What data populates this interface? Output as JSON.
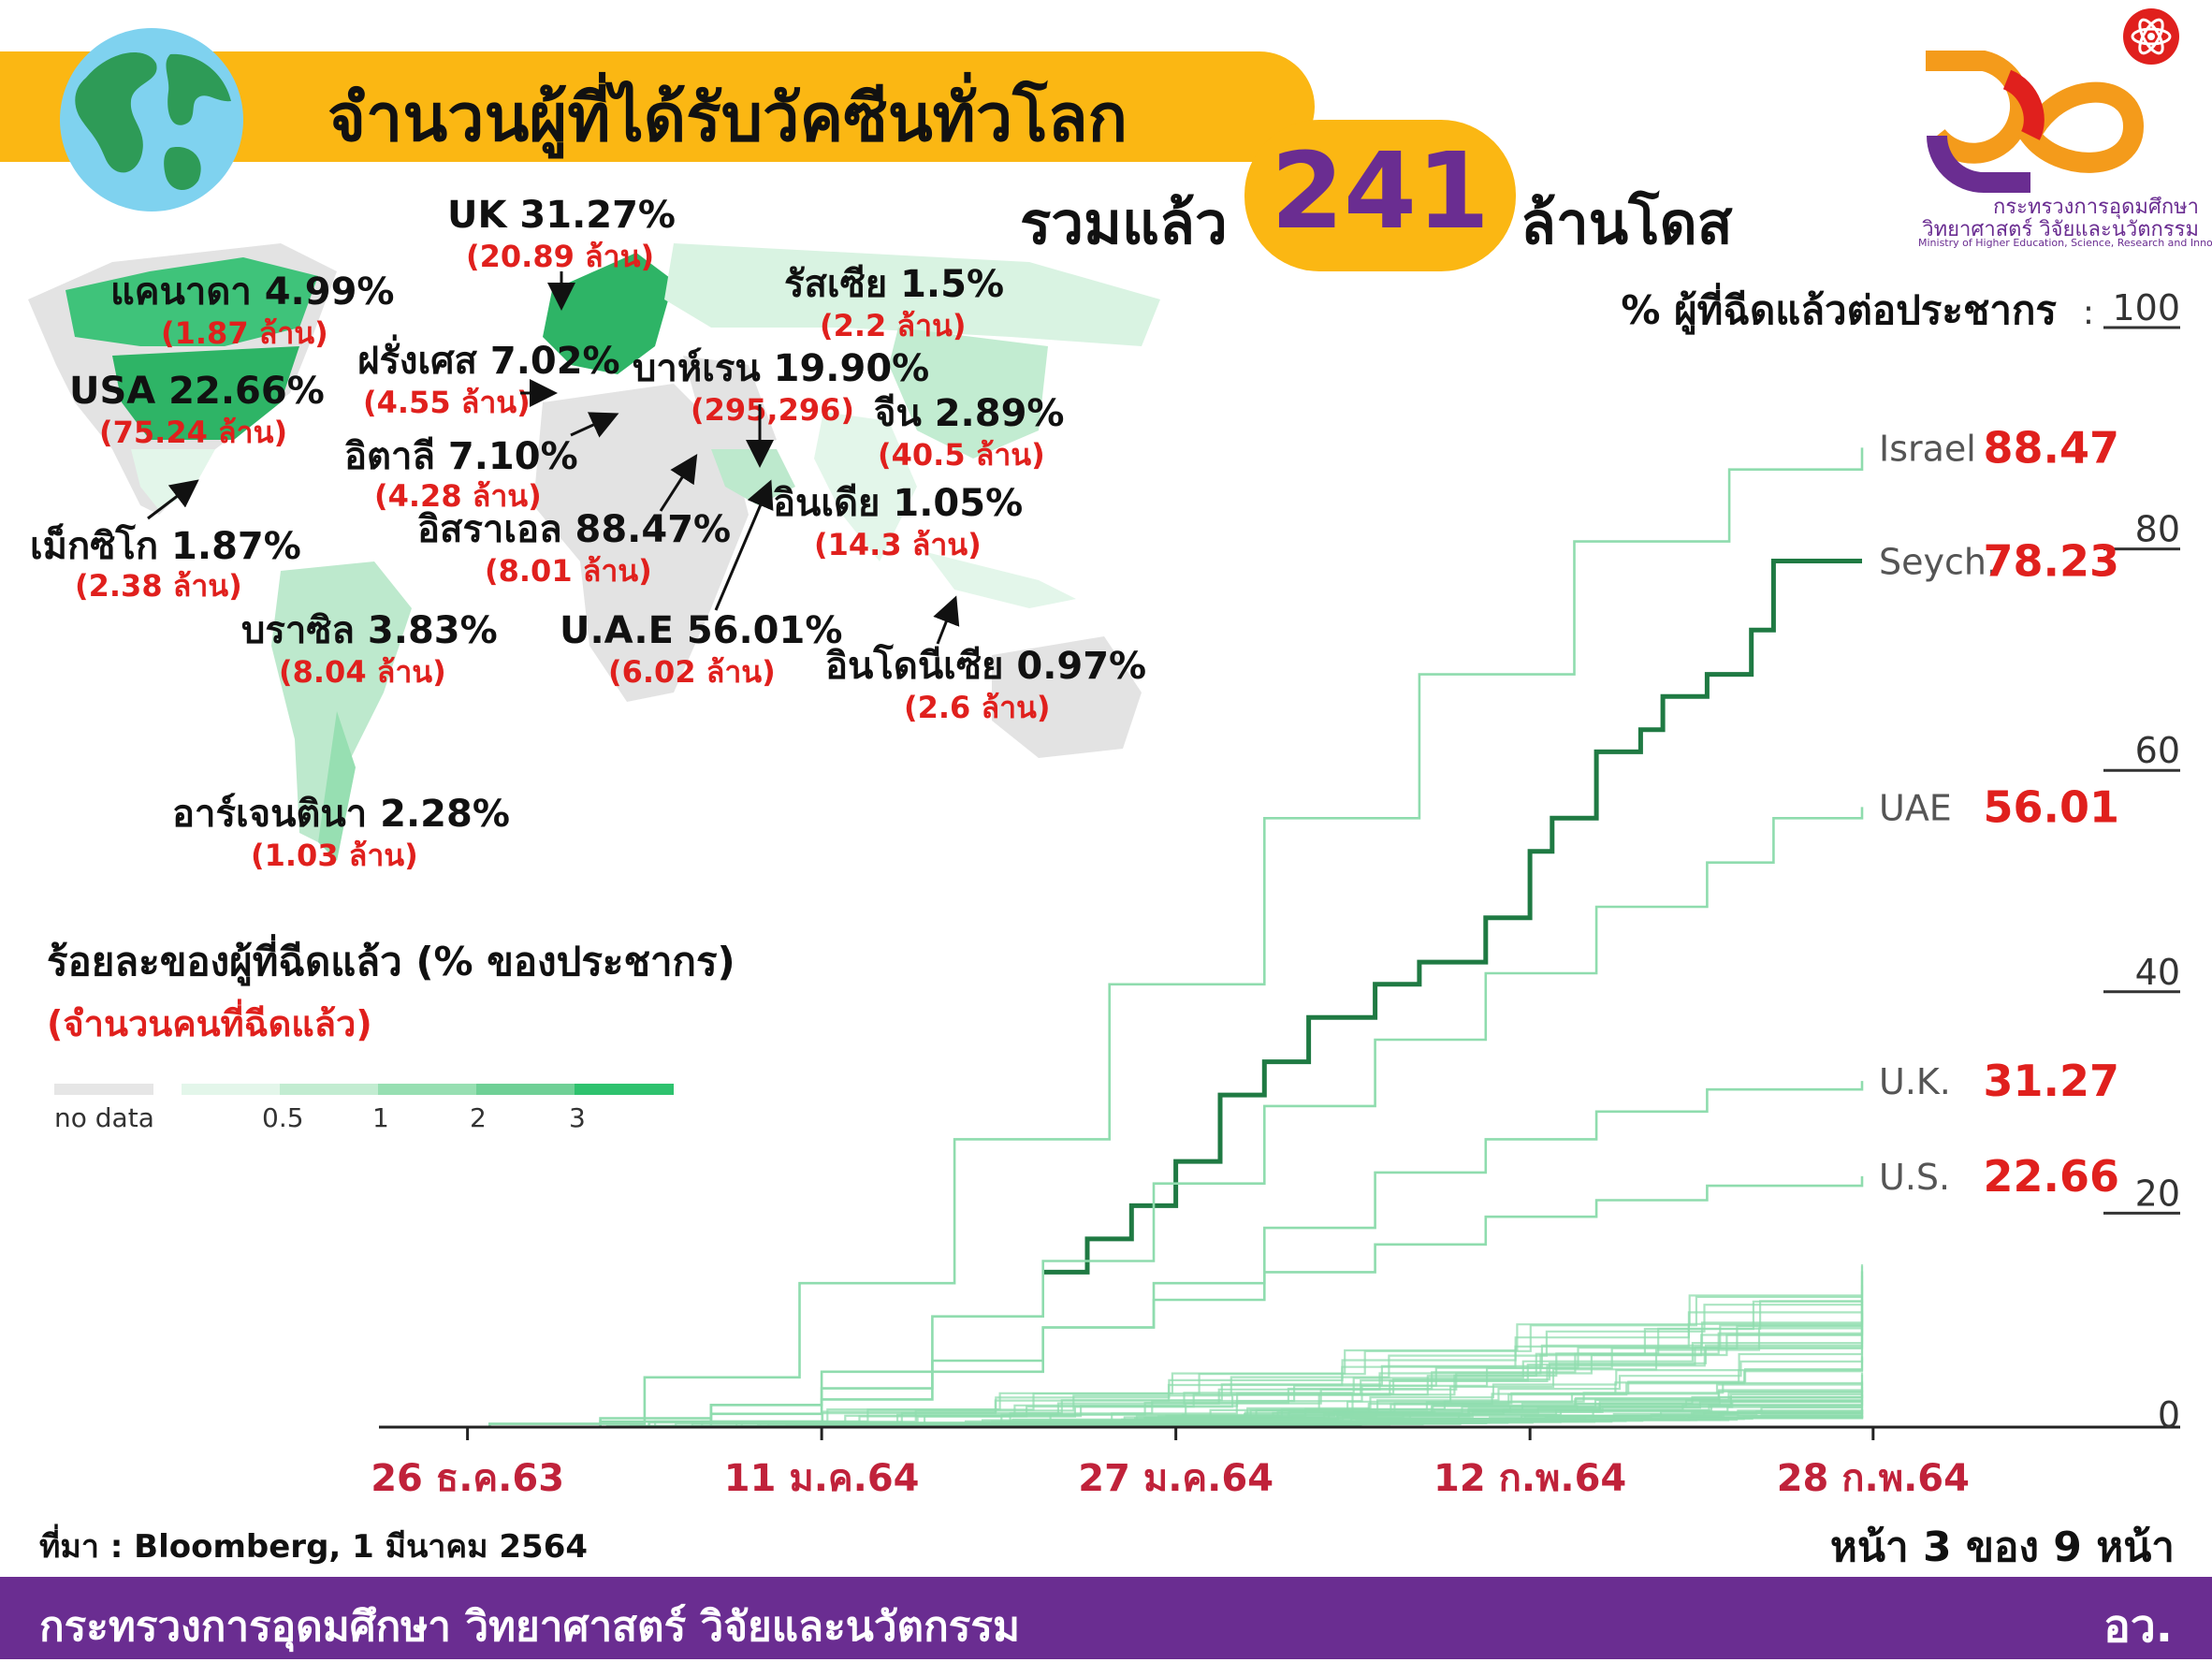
{
  "header": {
    "title": "จำนวนผู้ที่ได้รับวัคซีนทั่วโลก",
    "total_prefix": "รวมแล้ว",
    "total_value": "241",
    "total_suffix": "ล้านโดส"
  },
  "logo": {
    "line1": "กระทรวงการอุดมศึกษา",
    "line2": "วิทยาศาสตร์ วิจัยและนวัตกรรม",
    "line3": "Ministry of Higher Education, Science, Research and Innovation"
  },
  "map": {
    "countries": [
      {
        "name": "UK 31.27%",
        "amount": "(20.89 ล้าน)"
      },
      {
        "name": "แคนาดา 4.99%",
        "amount": "(1.87 ล้าน)"
      },
      {
        "name": "ฝรั่งเศส 7.02%",
        "amount": "(4.55 ล้าน)"
      },
      {
        "name": "USA 22.66%",
        "amount": "(75.24 ล้าน)"
      },
      {
        "name": "อิตาลี 7.10%",
        "amount": "(4.28 ล้าน)"
      },
      {
        "name": "รัสเซีย 1.5%",
        "amount": "(2.2 ล้าน)"
      },
      {
        "name": "บาห์เรน 19.90%",
        "amount": "(295,296)"
      },
      {
        "name": "จีน 2.89%",
        "amount": "(40.5 ล้าน)"
      },
      {
        "name": "อิสราเอล 88.47%",
        "amount": "(8.01 ล้าน)"
      },
      {
        "name": "อินเดีย 1.05%",
        "amount": "(14.3 ล้าน)"
      },
      {
        "name": "เม็กซิโก 1.87%",
        "amount": "(2.38 ล้าน)"
      },
      {
        "name": "บราซิล 3.83%",
        "amount": "(8.04 ล้าน)"
      },
      {
        "name": "U.A.E 56.01%",
        "amount": "(6.02 ล้าน)"
      },
      {
        "name": "อินโดนีเซีย 0.97%",
        "amount": "(2.6 ล้าน)"
      },
      {
        "name": "อาร์เจนตินา 2.28%",
        "amount": "(1.03 ล้าน)"
      }
    ]
  },
  "legend": {
    "title": "ร้อยละของผู้ที่ฉีดแล้ว (% ของประชากร)",
    "subtitle": "(จำนวนคนที่ฉีดแล้ว)",
    "no_data": "no data",
    "steps": [
      "0.5",
      "1",
      "2",
      "3"
    ],
    "colors": [
      "#e6e6e6",
      "#e3f6ea",
      "#c2ecd1",
      "#97dfb2",
      "#6fd096",
      "#2ec26e"
    ]
  },
  "chart_data": {
    "type": "line",
    "title": "% ผู้ที่ฉีดแล้วต่อประชากร",
    "y_axis_prefix": ":",
    "ylim": [
      0,
      100
    ],
    "y_ticks": [
      "0",
      "20",
      "40",
      "60",
      "80",
      "100"
    ],
    "x_ticks": [
      "26 ธ.ค.63",
      "11 ม.ค.64",
      "27 ม.ค.64",
      "12 ก.พ.64",
      "28 ก.พ.64"
    ],
    "grid": false,
    "line_color": "#8fdcae",
    "highlight_color": "#1f7a43",
    "series": [
      {
        "name": "Israel",
        "value_label": "88.47",
        "points": [
          [
            -5,
            0
          ],
          [
            0,
            0.3
          ],
          [
            7,
            4.5
          ],
          [
            14,
            13
          ],
          [
            21,
            26
          ],
          [
            28,
            40
          ],
          [
            35,
            55
          ],
          [
            42,
            68
          ],
          [
            49,
            80
          ],
          [
            56,
            86.5
          ],
          [
            62,
            88.47
          ]
        ]
      },
      {
        "name": "Seych.",
        "value_label": "78.23",
        "highlight": true,
        "points": [
          [
            25,
            14
          ],
          [
            27,
            17
          ],
          [
            29,
            20
          ],
          [
            31,
            24
          ],
          [
            33,
            30
          ],
          [
            35,
            33
          ],
          [
            37,
            37
          ],
          [
            40,
            40
          ],
          [
            42,
            42
          ],
          [
            45,
            46
          ],
          [
            47,
            52
          ],
          [
            48,
            55
          ],
          [
            50,
            61
          ],
          [
            52,
            63
          ],
          [
            53,
            66
          ],
          [
            55,
            68
          ],
          [
            57,
            72
          ],
          [
            58,
            78.23
          ],
          [
            62,
            78.23
          ]
        ]
      },
      {
        "name": "UAE",
        "value_label": "56.01",
        "points": [
          [
            5,
            0
          ],
          [
            10,
            2
          ],
          [
            15,
            5
          ],
          [
            20,
            10
          ],
          [
            25,
            15
          ],
          [
            30,
            22
          ],
          [
            35,
            29
          ],
          [
            40,
            35
          ],
          [
            45,
            41
          ],
          [
            50,
            47
          ],
          [
            55,
            51
          ],
          [
            58,
            55
          ],
          [
            62,
            56.01
          ]
        ]
      },
      {
        "name": "U.K.",
        "value_label": "31.27",
        "points": [
          [
            -5,
            0
          ],
          [
            5,
            0.5
          ],
          [
            10,
            1.2
          ],
          [
            15,
            2.5
          ],
          [
            20,
            5
          ],
          [
            25,
            9
          ],
          [
            30,
            13
          ],
          [
            35,
            18
          ],
          [
            40,
            23
          ],
          [
            45,
            26
          ],
          [
            50,
            28.5
          ],
          [
            55,
            30.5
          ],
          [
            62,
            31.27
          ]
        ]
      },
      {
        "name": "U.S.",
        "value_label": "22.66",
        "points": [
          [
            -5,
            0
          ],
          [
            0,
            0.3
          ],
          [
            5,
            0.8
          ],
          [
            10,
            2
          ],
          [
            15,
            3.5
          ],
          [
            20,
            6
          ],
          [
            25,
            9
          ],
          [
            30,
            11.5
          ],
          [
            35,
            14
          ],
          [
            40,
            16.5
          ],
          [
            45,
            19
          ],
          [
            50,
            20.5
          ],
          [
            55,
            21.8
          ],
          [
            62,
            22.66
          ]
        ]
      }
    ]
  },
  "footer": {
    "source": "ที่มา : Bloomberg, 1 มีนาคม 2564",
    "page": "หน้า 3 ของ 9 หน้า",
    "ministry": "กระทรวงการอุดมศึกษา วิทยาศาสตร์ วิจัยและนวัตกรรม",
    "abbr": "อว."
  }
}
